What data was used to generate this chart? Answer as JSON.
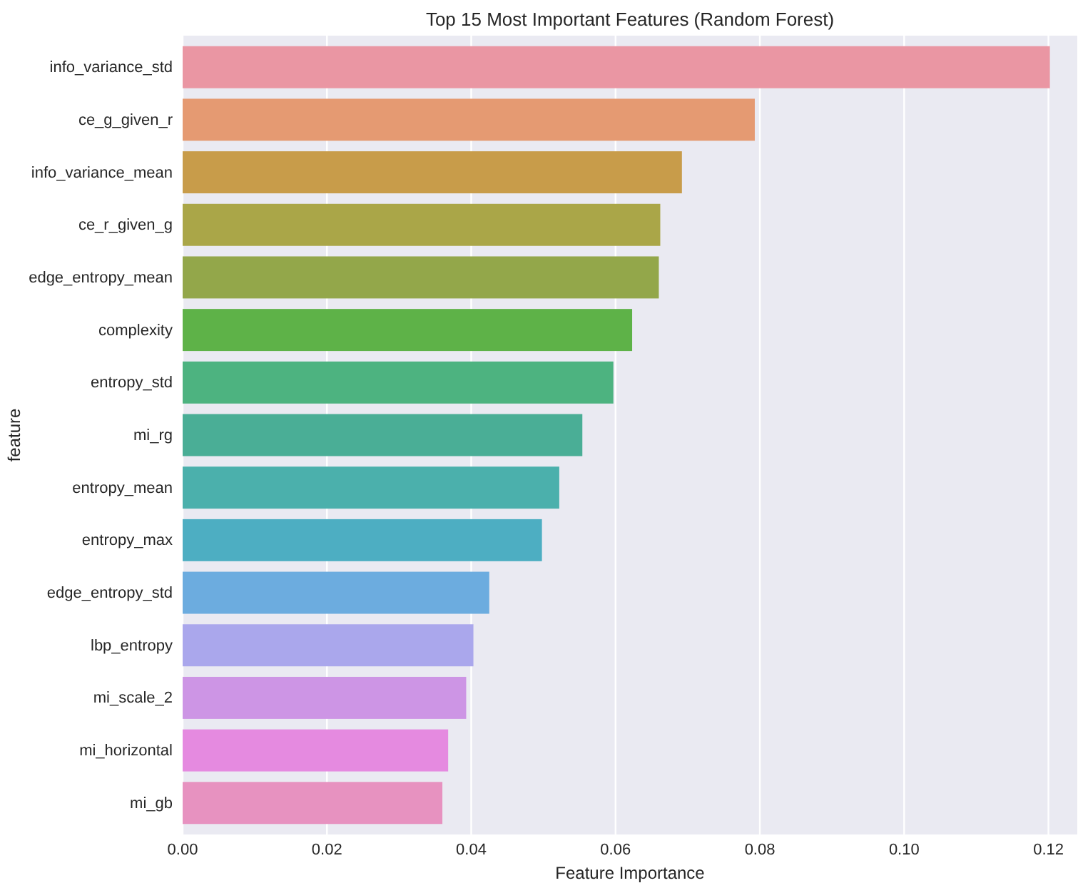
{
  "chart_data": {
    "type": "bar",
    "orientation": "horizontal",
    "title": "Top 15 Most Important Features (Random Forest)",
    "xlabel": "Feature Importance",
    "ylabel": "feature",
    "categories": [
      "info_variance_std",
      "ce_g_given_r",
      "info_variance_mean",
      "ce_r_given_g",
      "edge_entropy_mean",
      "complexity",
      "entropy_std",
      "mi_rg",
      "entropy_mean",
      "entropy_max",
      "edge_entropy_std",
      "lbp_entropy",
      "mi_scale_2",
      "mi_horizontal",
      "mi_gb"
    ],
    "values": [
      0.1202,
      0.0793,
      0.0692,
      0.0662,
      0.066,
      0.0623,
      0.0597,
      0.0554,
      0.0522,
      0.0498,
      0.0425,
      0.0403,
      0.0393,
      0.0368,
      0.036
    ],
    "colors": [
      "#ea96a3",
      "#e59a72",
      "#c89c4a",
      "#aaa648",
      "#93a74a",
      "#5eb248",
      "#4db380",
      "#4aae96",
      "#4bb0ac",
      "#4daec2",
      "#6cacdf",
      "#aaa7ec",
      "#cd95e5",
      "#e58ae0",
      "#e792c0"
    ],
    "xlim": [
      0,
      0.124
    ],
    "xticks": [
      {
        "value": 0,
        "label": "0.00"
      },
      {
        "value": 0.02,
        "label": "0.02"
      },
      {
        "value": 0.04,
        "label": "0.04"
      },
      {
        "value": 0.06,
        "label": "0.06"
      },
      {
        "value": 0.08,
        "label": "0.08"
      },
      {
        "value": 0.1,
        "label": "0.10"
      },
      {
        "value": 0.12,
        "label": "0.12"
      }
    ],
    "grid": "x"
  }
}
